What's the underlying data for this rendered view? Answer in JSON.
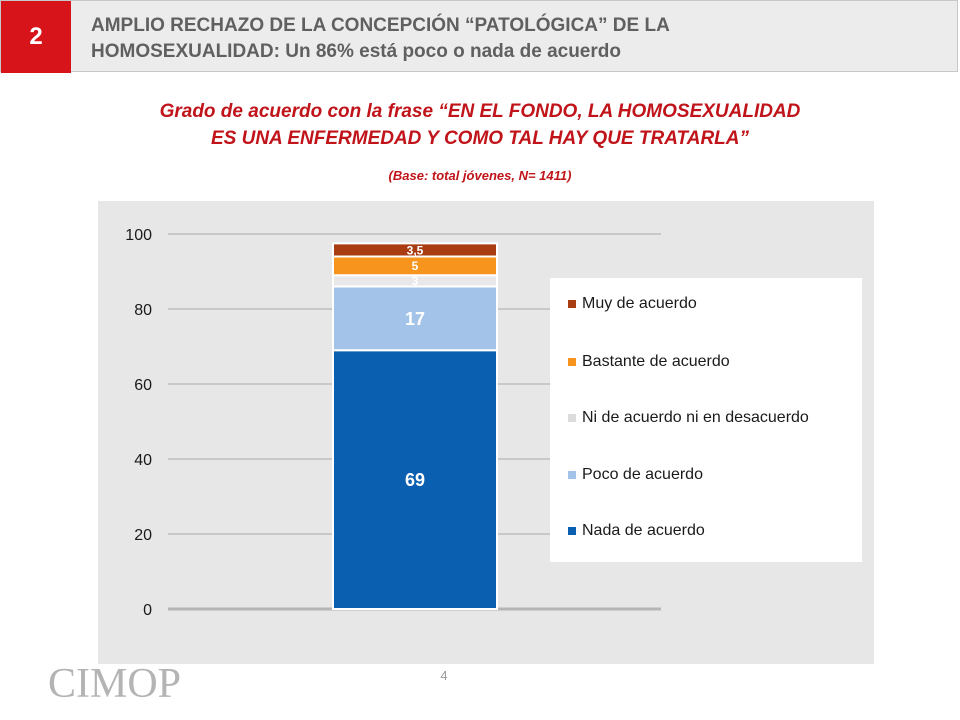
{
  "header": {
    "section_number": "2",
    "title_line1": "AMPLIO RECHAZO DE LA CONCEPCIÓN “PATOLÓGICA” DE LA",
    "title_line2": "HOMOSEXUALIDAD: Un 86% está poco o nada de acuerdo"
  },
  "question": {
    "line1": "Grado de acuerdo con la frase “EN EL FONDO, LA HOMOSEXUALIDAD",
    "line2": "ES UNA ENFERMEDAD Y COMO TAL HAY QUE TRATARLA”"
  },
  "base_note": "(Base: total jóvenes, N= 1411)",
  "footer": {
    "page_number": "4",
    "logo_text": "CIMOP"
  },
  "chart_data": {
    "type": "bar",
    "stacked": true,
    "categories": [
      ""
    ],
    "ylim": [
      0,
      100
    ],
    "yticks": [
      0,
      20,
      40,
      60,
      80,
      100
    ],
    "grid": true,
    "legend_position": "right",
    "series": [
      {
        "name": "Nada de acuerdo",
        "values": [
          69
        ],
        "label": "69",
        "color": "#0a5fb0"
      },
      {
        "name": "Poco de acuerdo",
        "values": [
          17
        ],
        "label": "17",
        "color": "#a3c4e8"
      },
      {
        "name": "Ni de acuerdo ni en desacuerdo",
        "values": [
          3
        ],
        "label": "3",
        "color": "#e8e8e8"
      },
      {
        "name": "Bastante de acuerdo",
        "values": [
          5
        ],
        "label": "5",
        "color": "#f7941d"
      },
      {
        "name": "Muy de acuerdo",
        "values": [
          3.5
        ],
        "label": "3,5",
        "color": "#a93d11"
      }
    ],
    "legend_order": [
      "Muy de acuerdo",
      "Bastante de acuerdo",
      "Ni de acuerdo ni en desacuerdo",
      "Poco de acuerdo",
      "Nada de acuerdo"
    ]
  }
}
